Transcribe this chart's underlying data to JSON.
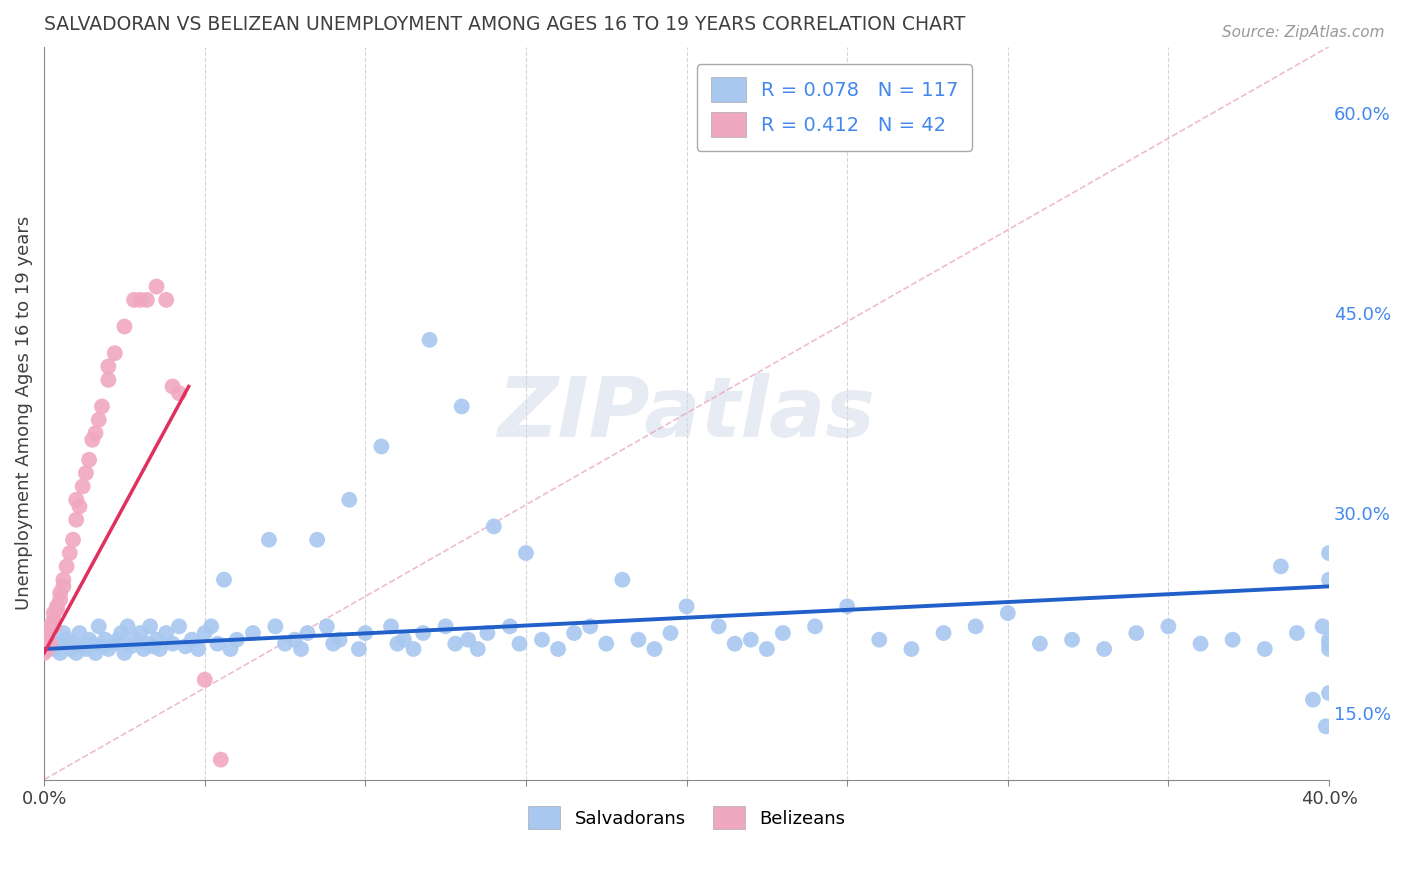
{
  "title": "SALVADORAN VS BELIZEAN UNEMPLOYMENT AMONG AGES 16 TO 19 YEARS CORRELATION CHART",
  "source": "Source: ZipAtlas.com",
  "ylabel": "Unemployment Among Ages 16 to 19 years",
  "xlim": [
    0.0,
    0.4
  ],
  "ylim": [
    0.1,
    0.65
  ],
  "xtick_vals": [
    0.0,
    0.05,
    0.1,
    0.15,
    0.2,
    0.25,
    0.3,
    0.35,
    0.4
  ],
  "xtick_labels": [
    "0.0%",
    "",
    "",
    "",
    "",
    "",
    "",
    "",
    "40.0%"
  ],
  "ytick_vals_right": [
    0.15,
    0.3,
    0.45,
    0.6
  ],
  "ytick_labels_right": [
    "15.0%",
    "30.0%",
    "45.0%",
    "60.0%"
  ],
  "salvadoran_R": 0.078,
  "salvadoran_N": 117,
  "belizean_R": 0.412,
  "belizean_N": 42,
  "blue_color": "#a8c8f0",
  "pink_color": "#f0a8c0",
  "blue_line_color": "#2060c8",
  "pink_line_color": "#e03060",
  "diag_line_color": "#e8a0b8",
  "legend_text_color": "#4488ee",
  "background_color": "#ffffff",
  "grid_color": "#cccccc",
  "title_color": "#404040",
  "blue_line_x": [
    0.0,
    0.4
  ],
  "blue_line_y": [
    0.198,
    0.245
  ],
  "pink_line_x": [
    0.0,
    0.045
  ],
  "pink_line_y": [
    0.195,
    0.395
  ],
  "diag_line_x": [
    0.0,
    0.4
  ],
  "diag_line_y": [
    0.1,
    0.65
  ],
  "salvadoran_x": [
    0.002,
    0.003,
    0.004,
    0.005,
    0.006,
    0.007,
    0.008,
    0.009,
    0.01,
    0.011,
    0.012,
    0.013,
    0.014,
    0.015,
    0.016,
    0.017,
    0.018,
    0.019,
    0.02,
    0.022,
    0.023,
    0.024,
    0.025,
    0.026,
    0.027,
    0.028,
    0.03,
    0.031,
    0.032,
    0.033,
    0.034,
    0.035,
    0.036,
    0.038,
    0.04,
    0.042,
    0.044,
    0.046,
    0.048,
    0.05,
    0.052,
    0.054,
    0.056,
    0.058,
    0.06,
    0.065,
    0.07,
    0.072,
    0.075,
    0.078,
    0.08,
    0.082,
    0.085,
    0.088,
    0.09,
    0.092,
    0.095,
    0.098,
    0.1,
    0.105,
    0.108,
    0.11,
    0.112,
    0.115,
    0.118,
    0.12,
    0.125,
    0.128,
    0.13,
    0.132,
    0.135,
    0.138,
    0.14,
    0.145,
    0.148,
    0.15,
    0.155,
    0.16,
    0.165,
    0.17,
    0.175,
    0.18,
    0.185,
    0.19,
    0.195,
    0.2,
    0.21,
    0.215,
    0.22,
    0.225,
    0.23,
    0.24,
    0.25,
    0.26,
    0.27,
    0.28,
    0.29,
    0.3,
    0.31,
    0.32,
    0.33,
    0.34,
    0.35,
    0.36,
    0.37,
    0.38,
    0.385,
    0.39,
    0.395,
    0.398,
    0.399,
    0.4,
    0.4,
    0.4,
    0.4,
    0.4,
    0.4
  ],
  "salvadoran_y": [
    0.2,
    0.198,
    0.202,
    0.195,
    0.21,
    0.205,
    0.198,
    0.202,
    0.195,
    0.21,
    0.2,
    0.198,
    0.205,
    0.202,
    0.195,
    0.215,
    0.2,
    0.205,
    0.198,
    0.202,
    0.205,
    0.21,
    0.195,
    0.215,
    0.2,
    0.205,
    0.21,
    0.198,
    0.202,
    0.215,
    0.2,
    0.205,
    0.198,
    0.21,
    0.202,
    0.215,
    0.2,
    0.205,
    0.198,
    0.21,
    0.215,
    0.202,
    0.25,
    0.198,
    0.205,
    0.21,
    0.28,
    0.215,
    0.202,
    0.205,
    0.198,
    0.21,
    0.28,
    0.215,
    0.202,
    0.205,
    0.31,
    0.198,
    0.21,
    0.35,
    0.215,
    0.202,
    0.205,
    0.198,
    0.21,
    0.43,
    0.215,
    0.202,
    0.38,
    0.205,
    0.198,
    0.21,
    0.29,
    0.215,
    0.202,
    0.27,
    0.205,
    0.198,
    0.21,
    0.215,
    0.202,
    0.25,
    0.205,
    0.198,
    0.21,
    0.23,
    0.215,
    0.202,
    0.205,
    0.198,
    0.21,
    0.215,
    0.23,
    0.205,
    0.198,
    0.21,
    0.215,
    0.225,
    0.202,
    0.205,
    0.198,
    0.21,
    0.215,
    0.202,
    0.205,
    0.198,
    0.26,
    0.21,
    0.16,
    0.215,
    0.14,
    0.202,
    0.205,
    0.198,
    0.27,
    0.165,
    0.25
  ],
  "belizean_x": [
    0.0,
    0.0,
    0.0,
    0.001,
    0.001,
    0.002,
    0.002,
    0.003,
    0.003,
    0.003,
    0.004,
    0.004,
    0.005,
    0.005,
    0.006,
    0.006,
    0.007,
    0.008,
    0.009,
    0.01,
    0.01,
    0.011,
    0.012,
    0.013,
    0.014,
    0.015,
    0.016,
    0.017,
    0.018,
    0.02,
    0.02,
    0.022,
    0.025,
    0.028,
    0.03,
    0.032,
    0.035,
    0.038,
    0.04,
    0.042,
    0.05,
    0.055
  ],
  "belizean_y": [
    0.2,
    0.205,
    0.195,
    0.21,
    0.198,
    0.215,
    0.202,
    0.22,
    0.215,
    0.225,
    0.23,
    0.228,
    0.24,
    0.235,
    0.25,
    0.245,
    0.26,
    0.27,
    0.28,
    0.295,
    0.31,
    0.305,
    0.32,
    0.33,
    0.34,
    0.355,
    0.36,
    0.37,
    0.38,
    0.4,
    0.41,
    0.42,
    0.44,
    0.46,
    0.46,
    0.46,
    0.47,
    0.46,
    0.395,
    0.39,
    0.175,
    0.115
  ]
}
